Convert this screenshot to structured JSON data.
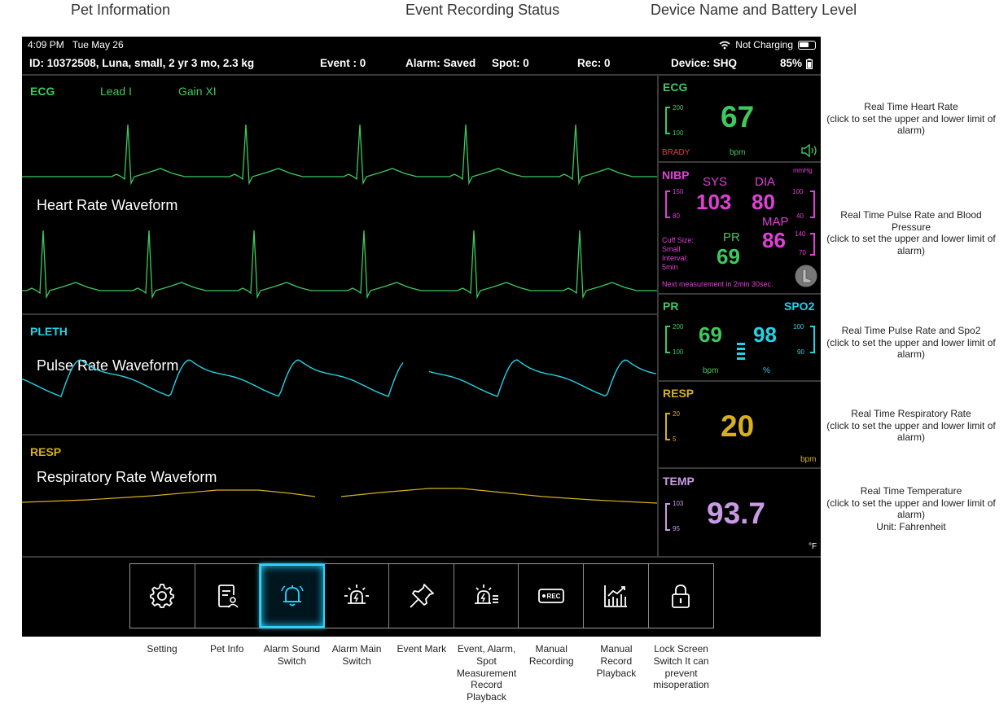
{
  "callouts": {
    "pet_info": "Pet Information",
    "event_status": "Event Recording Status",
    "device_battery": "Device Name and Battery Level",
    "heart_rate": "Real Time Heart Rate\n(click to set the upper and lower limit of alarm)",
    "pulse_bp": "Real Time Pulse Rate and Blood Pressure\n(click to set the upper and lower limit of alarm)",
    "pulse_spo2": "Real Time Pulse Rate and Spo2\n(click to set the upper and lower limit of alarm)",
    "resp": "Real Time Respiratory Rate\n(click to set the upper and lower limit of alarm)",
    "temp": "Real Time Temperature\n(click to set the upper and lower limit of alarm)\nUnit: Fahrenheit"
  },
  "statusbar": {
    "time": "4:09 PM",
    "date": "Tue May 26",
    "charging": "Not Charging"
  },
  "infobar": {
    "pet": "ID: 10372508, Luna, small, 2 yr 3 mo, 2.3 kg",
    "event": "Event : 0",
    "alarm": "Alarm: Saved",
    "spot": "Spot: 0",
    "rec": "Rec: 0",
    "device": "Device: SHQ",
    "battery": "85%"
  },
  "waves": {
    "ecg_label": "ECG",
    "lead": "Lead I",
    "gain": "Gain XI",
    "ecg_name": "Heart Rate Waveform",
    "pleth_label": "PLETH",
    "pleth_name": "Pulse Rate Waveform",
    "resp_label": "RESP",
    "resp_name": "Respiratory Rate Waveform"
  },
  "ecg": {
    "title": "ECG",
    "hi": "200",
    "lo": "100",
    "value": "67",
    "status": "BRADY",
    "unit": "bpm"
  },
  "nibp": {
    "title": "NIBP",
    "unit": "mmHg",
    "sys_label": "SYS",
    "sys_hi": "150",
    "sys_lo": "80",
    "sys": "103",
    "dia_label": "DIA",
    "dia": "80",
    "dia_hi": "100",
    "dia_lo": "40",
    "map_label": "MAP",
    "map": "86",
    "map_hi": "140",
    "map_lo": "70",
    "pr_label": "PR",
    "pr": "69",
    "cuff": "Cuff Size:",
    "cuff_val": "Small",
    "interval": "Interval:",
    "interval_val": "5min",
    "next": "Next measurement in 2min 30sec."
  },
  "pr_spo2": {
    "pr_title": "PR",
    "spo2_title": "SPO2",
    "pr_hi": "200",
    "pr_lo": "100",
    "pr": "69",
    "spo2": "98",
    "spo2_hi": "100",
    "spo2_lo": "90",
    "pr_unit": "bpm",
    "spo2_unit": "%"
  },
  "resp": {
    "title": "RESP",
    "hi": "20",
    "lo": "5",
    "value": "20",
    "unit": "bpm"
  },
  "temp": {
    "title": "TEMP",
    "hi": "103",
    "lo": "95",
    "value": "93.7",
    "unit": "°F"
  },
  "toolbar": [
    {
      "icon": "gear-icon",
      "label": "Setting"
    },
    {
      "icon": "pet-info-icon",
      "label": "Pet Info"
    },
    {
      "icon": "bell-icon",
      "label": "Alarm Sound Switch"
    },
    {
      "icon": "alarm-light-icon",
      "label": "Alarm Main Switch"
    },
    {
      "icon": "pin-icon",
      "label": "Event Mark"
    },
    {
      "icon": "alarm-list-icon",
      "label": "Event, Alarm, Spot Measurement Record Playback"
    },
    {
      "icon": "rec-icon",
      "label": "Manual Recording"
    },
    {
      "icon": "chart-icon",
      "label": "Manual Record Playback"
    },
    {
      "icon": "lock-icon",
      "label": "Lock Screen Switch It can prevent misoperation"
    }
  ],
  "colors": {
    "ecg": "#3ec95e",
    "nibp": "#e040d6",
    "spo2": "#22d3e6",
    "resp": "#d6b020",
    "temp": "#c99be6",
    "active": "#2ad4ff"
  }
}
